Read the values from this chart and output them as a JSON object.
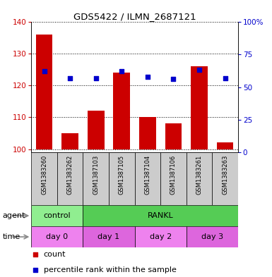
{
  "title": "GDS5422 / ILMN_2687121",
  "samples": [
    "GSM1383260",
    "GSM1383262",
    "GSM1387103",
    "GSM1387105",
    "GSM1387104",
    "GSM1387106",
    "GSM1383261",
    "GSM1383263"
  ],
  "counts": [
    136,
    105,
    112,
    124,
    110,
    108,
    126,
    102
  ],
  "percentiles": [
    62,
    57,
    57,
    62,
    58,
    56,
    63,
    57
  ],
  "ylim_left": [
    99,
    140
  ],
  "ylim_right": [
    0,
    100
  ],
  "yticks_left": [
    100,
    110,
    120,
    130,
    140
  ],
  "yticks_right": [
    0,
    25,
    50,
    75,
    100
  ],
  "ytick_labels_right": [
    "0",
    "25",
    "50",
    "75",
    "100%"
  ],
  "agent_groups": [
    {
      "label": "control",
      "start": 0,
      "end": 2,
      "color": "#90EE90"
    },
    {
      "label": "RANKL",
      "start": 2,
      "end": 8,
      "color": "#55CC55"
    }
  ],
  "time_groups": [
    {
      "label": "day 0",
      "start": 0,
      "end": 2,
      "color": "#EE82EE"
    },
    {
      "label": "day 1",
      "start": 2,
      "end": 4,
      "color": "#DD66DD"
    },
    {
      "label": "day 2",
      "start": 4,
      "end": 6,
      "color": "#EE82EE"
    },
    {
      "label": "day 3",
      "start": 6,
      "end": 8,
      "color": "#DD66DD"
    }
  ],
  "bar_color": "#CC0000",
  "dot_color": "#0000CC",
  "bar_base": 100,
  "tick_color_left": "#CC0000",
  "tick_color_right": "#0000CC",
  "legend_count_color": "#CC0000",
  "legend_pct_color": "#0000CC",
  "sample_bg_color": "#CCCCCC",
  "arrow_color": "#888888"
}
